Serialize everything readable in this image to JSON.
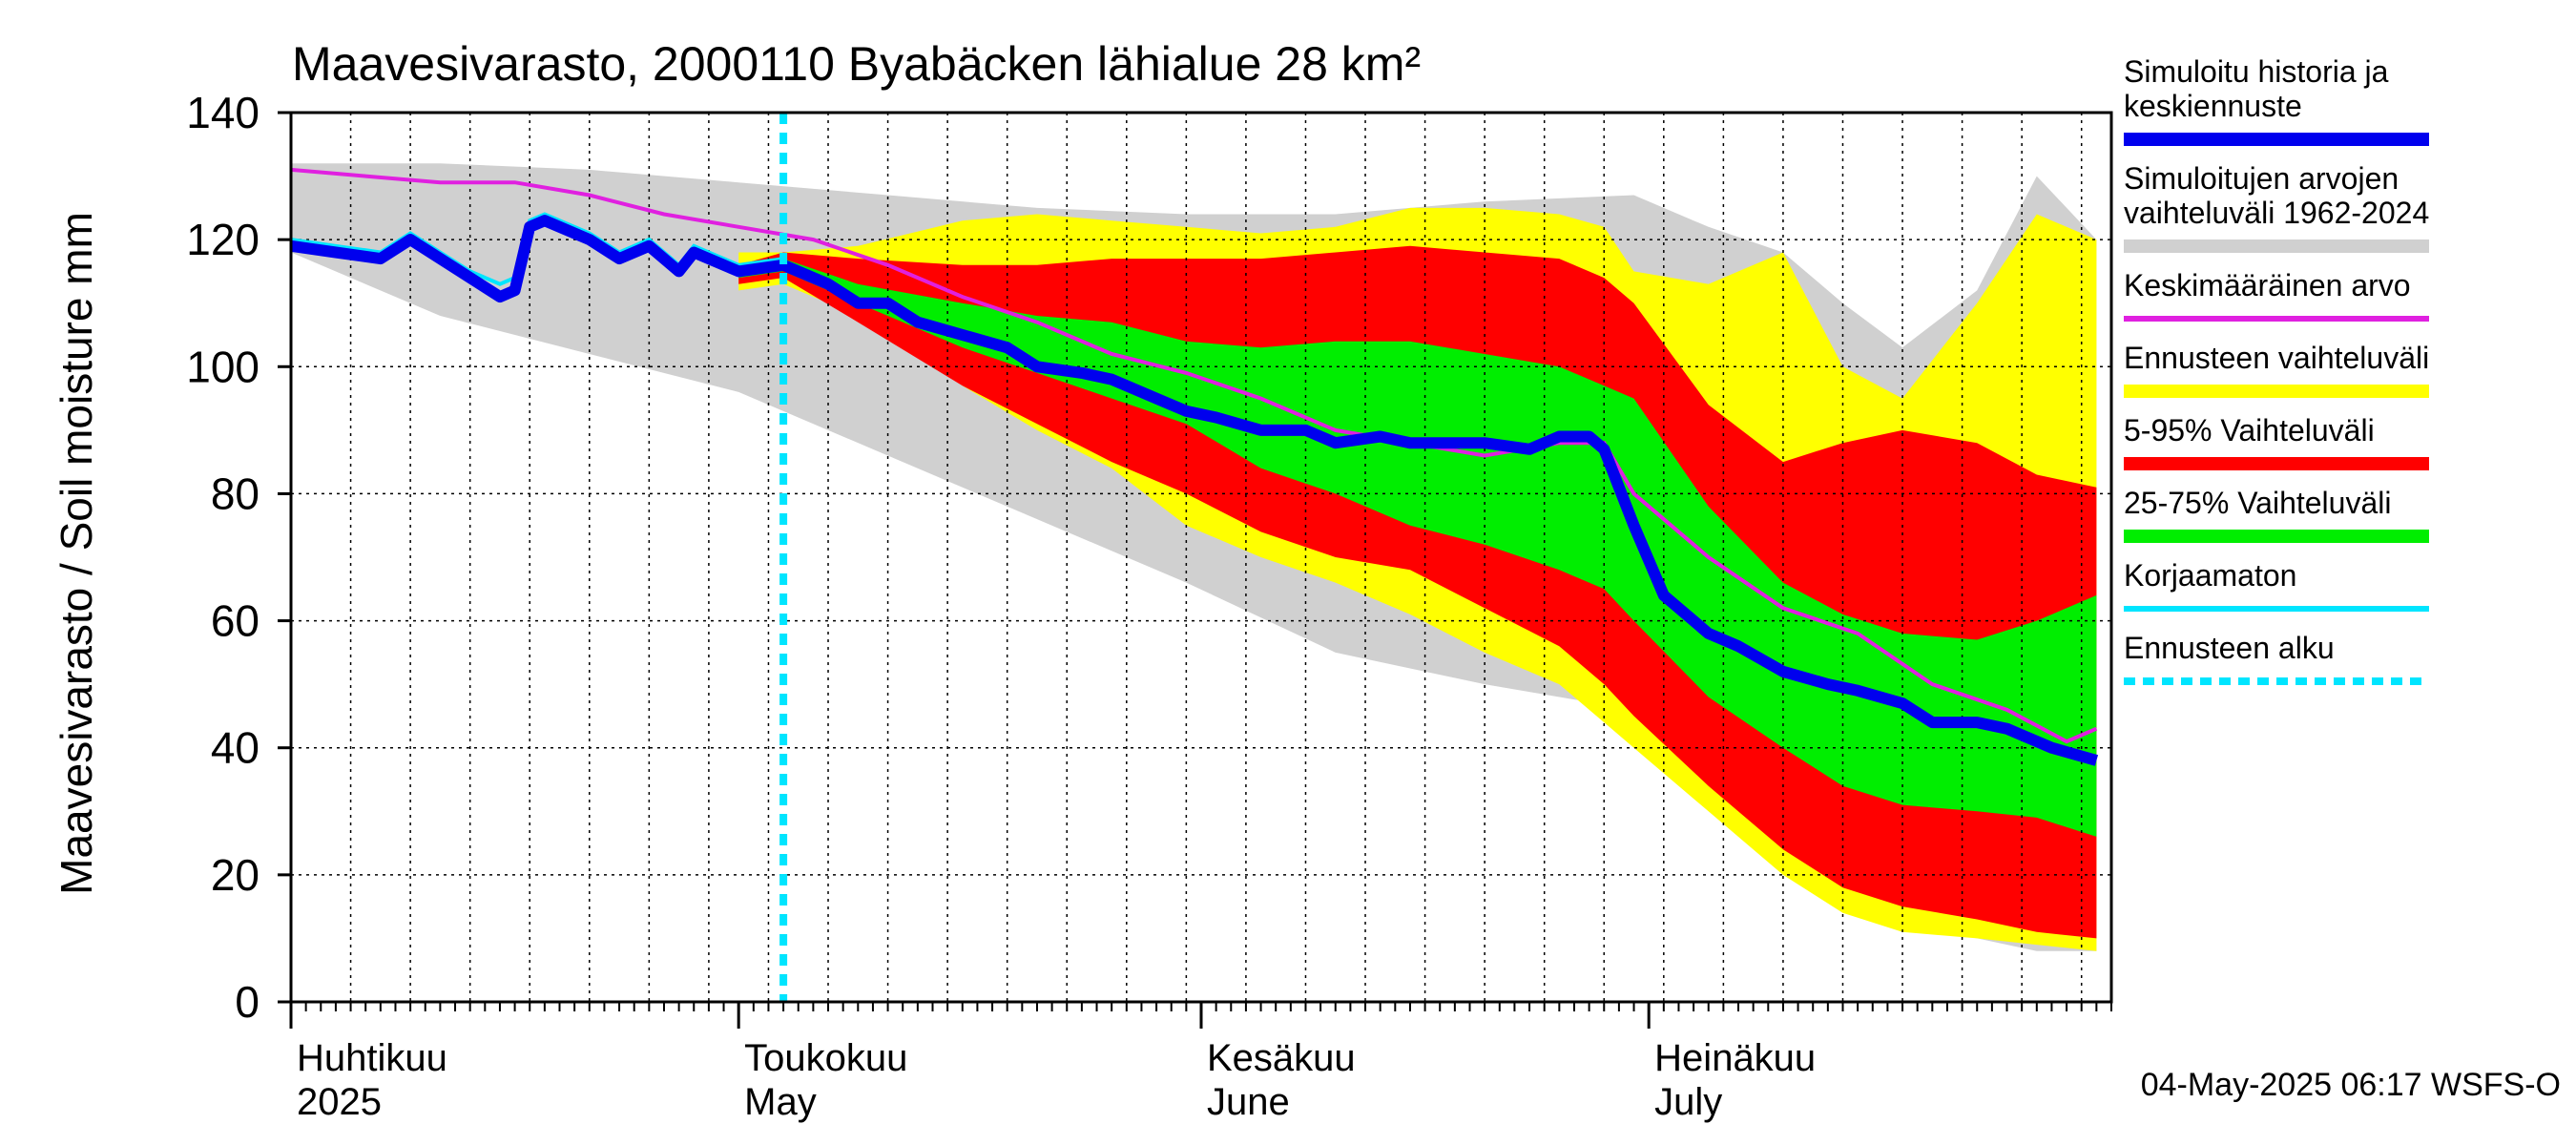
{
  "chart_data": {
    "type": "area",
    "title": "Maavesivarasto, 2000110 Byabäcken  lähialue 28 km²",
    "ylabel": "Maavesivarasto / Soil moisture   mm",
    "ylim": [
      0,
      140
    ],
    "yticks": [
      0,
      20,
      40,
      60,
      80,
      100,
      120,
      140
    ],
    "x_start": "2025-04-01",
    "x_days": 122,
    "forecast_start_day": 33,
    "months": [
      {
        "fi": "Huhtikuu",
        "en": "2025",
        "day": 0
      },
      {
        "fi": "Toukokuu",
        "en": "May",
        "day": 30
      },
      {
        "fi": "Kesäkuu",
        "en": "June",
        "day": 61
      },
      {
        "fi": "Heinäkuu",
        "en": "July",
        "day": 91
      }
    ],
    "timestamp": "04-May-2025 06:17 WSFS-O",
    "legend": [
      {
        "label": "Simuloitu historia ja keskiennuste",
        "color": "#0000ee",
        "style": "thick"
      },
      {
        "label": "Simuloitujen arvojen vaihteluväli 1962-2024",
        "color": "#d0d0d0",
        "style": "band"
      },
      {
        "label": "Keskimääräinen arvo",
        "color": "#e020e0",
        "style": "line"
      },
      {
        "label": "Ennusteen vaihteluväli",
        "color": "#ffff00",
        "style": "band"
      },
      {
        "label": "5-95% Vaihteluväli",
        "color": "#ff0000",
        "style": "band"
      },
      {
        "label": "25-75% Vaihteluväli",
        "color": "#00ee00",
        "style": "band"
      },
      {
        "label": "Korjaamaton",
        "color": "#00e5ff",
        "style": "line"
      },
      {
        "label": "Ennusteen alku",
        "color": "#00e5ff",
        "style": "dashed"
      }
    ],
    "series": {
      "hist_range": {
        "x": [
          0,
          10,
          20,
          30,
          40,
          50,
          60,
          70,
          80,
          90,
          95,
          100,
          104,
          108,
          113,
          117,
          121
        ],
        "upper": [
          132,
          132,
          131,
          129,
          127,
          125,
          124,
          124,
          126,
          127,
          122,
          118,
          110,
          103,
          112,
          130,
          120
        ],
        "lower": [
          118,
          108,
          102,
          96,
          86,
          76,
          66,
          55,
          50,
          46,
          38,
          25,
          18,
          12,
          10,
          8,
          8
        ]
      },
      "forecast_range": {
        "x": [
          30,
          33,
          38,
          45,
          50,
          55,
          60,
          65,
          70,
          75,
          80,
          85,
          88,
          90,
          95,
          100,
          104,
          108,
          113,
          117,
          121
        ],
        "upper": [
          118,
          118,
          119,
          123,
          124,
          123,
          122,
          121,
          122,
          125,
          125,
          124,
          122,
          115,
          113,
          118,
          100,
          95,
          110,
          124,
          120
        ],
        "lower": [
          112,
          113,
          108,
          97,
          90,
          84,
          75,
          70,
          66,
          61,
          55,
          50,
          44,
          40,
          30,
          20,
          14,
          11,
          10,
          9,
          8
        ]
      },
      "p5_95": {
        "x": [
          30,
          33,
          38,
          45,
          50,
          55,
          60,
          65,
          70,
          75,
          80,
          85,
          88,
          90,
          95,
          100,
          104,
          108,
          113,
          117,
          121
        ],
        "upper": [
          116,
          118,
          117,
          116,
          116,
          117,
          117,
          117,
          118,
          119,
          118,
          117,
          114,
          110,
          94,
          85,
          88,
          90,
          88,
          83,
          81
        ],
        "lower": [
          113,
          114,
          107,
          97,
          91,
          85,
          80,
          74,
          70,
          68,
          62,
          56,
          50,
          45,
          34,
          24,
          18,
          15,
          13,
          11,
          10
        ]
      },
      "p25_75": {
        "x": [
          30,
          33,
          38,
          45,
          50,
          55,
          60,
          65,
          70,
          75,
          80,
          85,
          88,
          90,
          95,
          100,
          104,
          108,
          113,
          117,
          121
        ],
        "upper": [
          116,
          117,
          113,
          110,
          108,
          107,
          104,
          103,
          104,
          104,
          102,
          100,
          97,
          95,
          78,
          66,
          61,
          58,
          57,
          60,
          64
        ],
        "lower": [
          114,
          115,
          110,
          103,
          99,
          95,
          91,
          84,
          80,
          75,
          72,
          68,
          65,
          60,
          48,
          40,
          34,
          31,
          30,
          29,
          26
        ]
      },
      "mean": {
        "x": [
          0,
          5,
          10,
          15,
          20,
          25,
          30,
          35,
          40,
          45,
          50,
          55,
          60,
          65,
          70,
          75,
          80,
          85,
          88,
          90,
          95,
          100,
          105,
          110,
          115,
          119,
          121
        ],
        "y": [
          131,
          130,
          129,
          129,
          127,
          124,
          122,
          120,
          116,
          111,
          107,
          102,
          99,
          95,
          90,
          88,
          86,
          88,
          88,
          80,
          70,
          62,
          58,
          50,
          46,
          41,
          43
        ]
      },
      "main": {
        "x": [
          0,
          3,
          6,
          8,
          10,
          12,
          14,
          15,
          16,
          17,
          18,
          20,
          22,
          24,
          26,
          27,
          28,
          30,
          33,
          36,
          38,
          40,
          42,
          45,
          48,
          50,
          53,
          55,
          58,
          60,
          62,
          65,
          68,
          70,
          73,
          75,
          78,
          80,
          83,
          85,
          87,
          88,
          90,
          92,
          95,
          97,
          100,
          103,
          105,
          108,
          110,
          113,
          115,
          118,
          121
        ],
        "y": [
          119,
          118,
          117,
          120,
          117,
          114,
          111,
          112,
          122,
          123,
          122,
          120,
          117,
          119,
          115,
          118,
          117,
          115,
          116,
          113,
          110,
          110,
          107,
          105,
          103,
          100,
          99,
          98,
          95,
          93,
          92,
          90,
          90,
          88,
          89,
          88,
          88,
          88,
          87,
          89,
          89,
          87,
          75,
          64,
          58,
          56,
          52,
          50,
          49,
          47,
          44,
          44,
          43,
          40,
          38
        ]
      },
      "uncorrected": {
        "x": [
          0,
          3,
          6,
          8,
          10,
          12,
          14,
          15,
          16,
          17,
          18,
          20,
          22,
          24,
          26,
          27,
          28,
          30,
          33
        ],
        "y": [
          120,
          119,
          118,
          121,
          118,
          115,
          113,
          114,
          123,
          124,
          123,
          121,
          118,
          120,
          116,
          119,
          118,
          116,
          117
        ]
      }
    }
  }
}
